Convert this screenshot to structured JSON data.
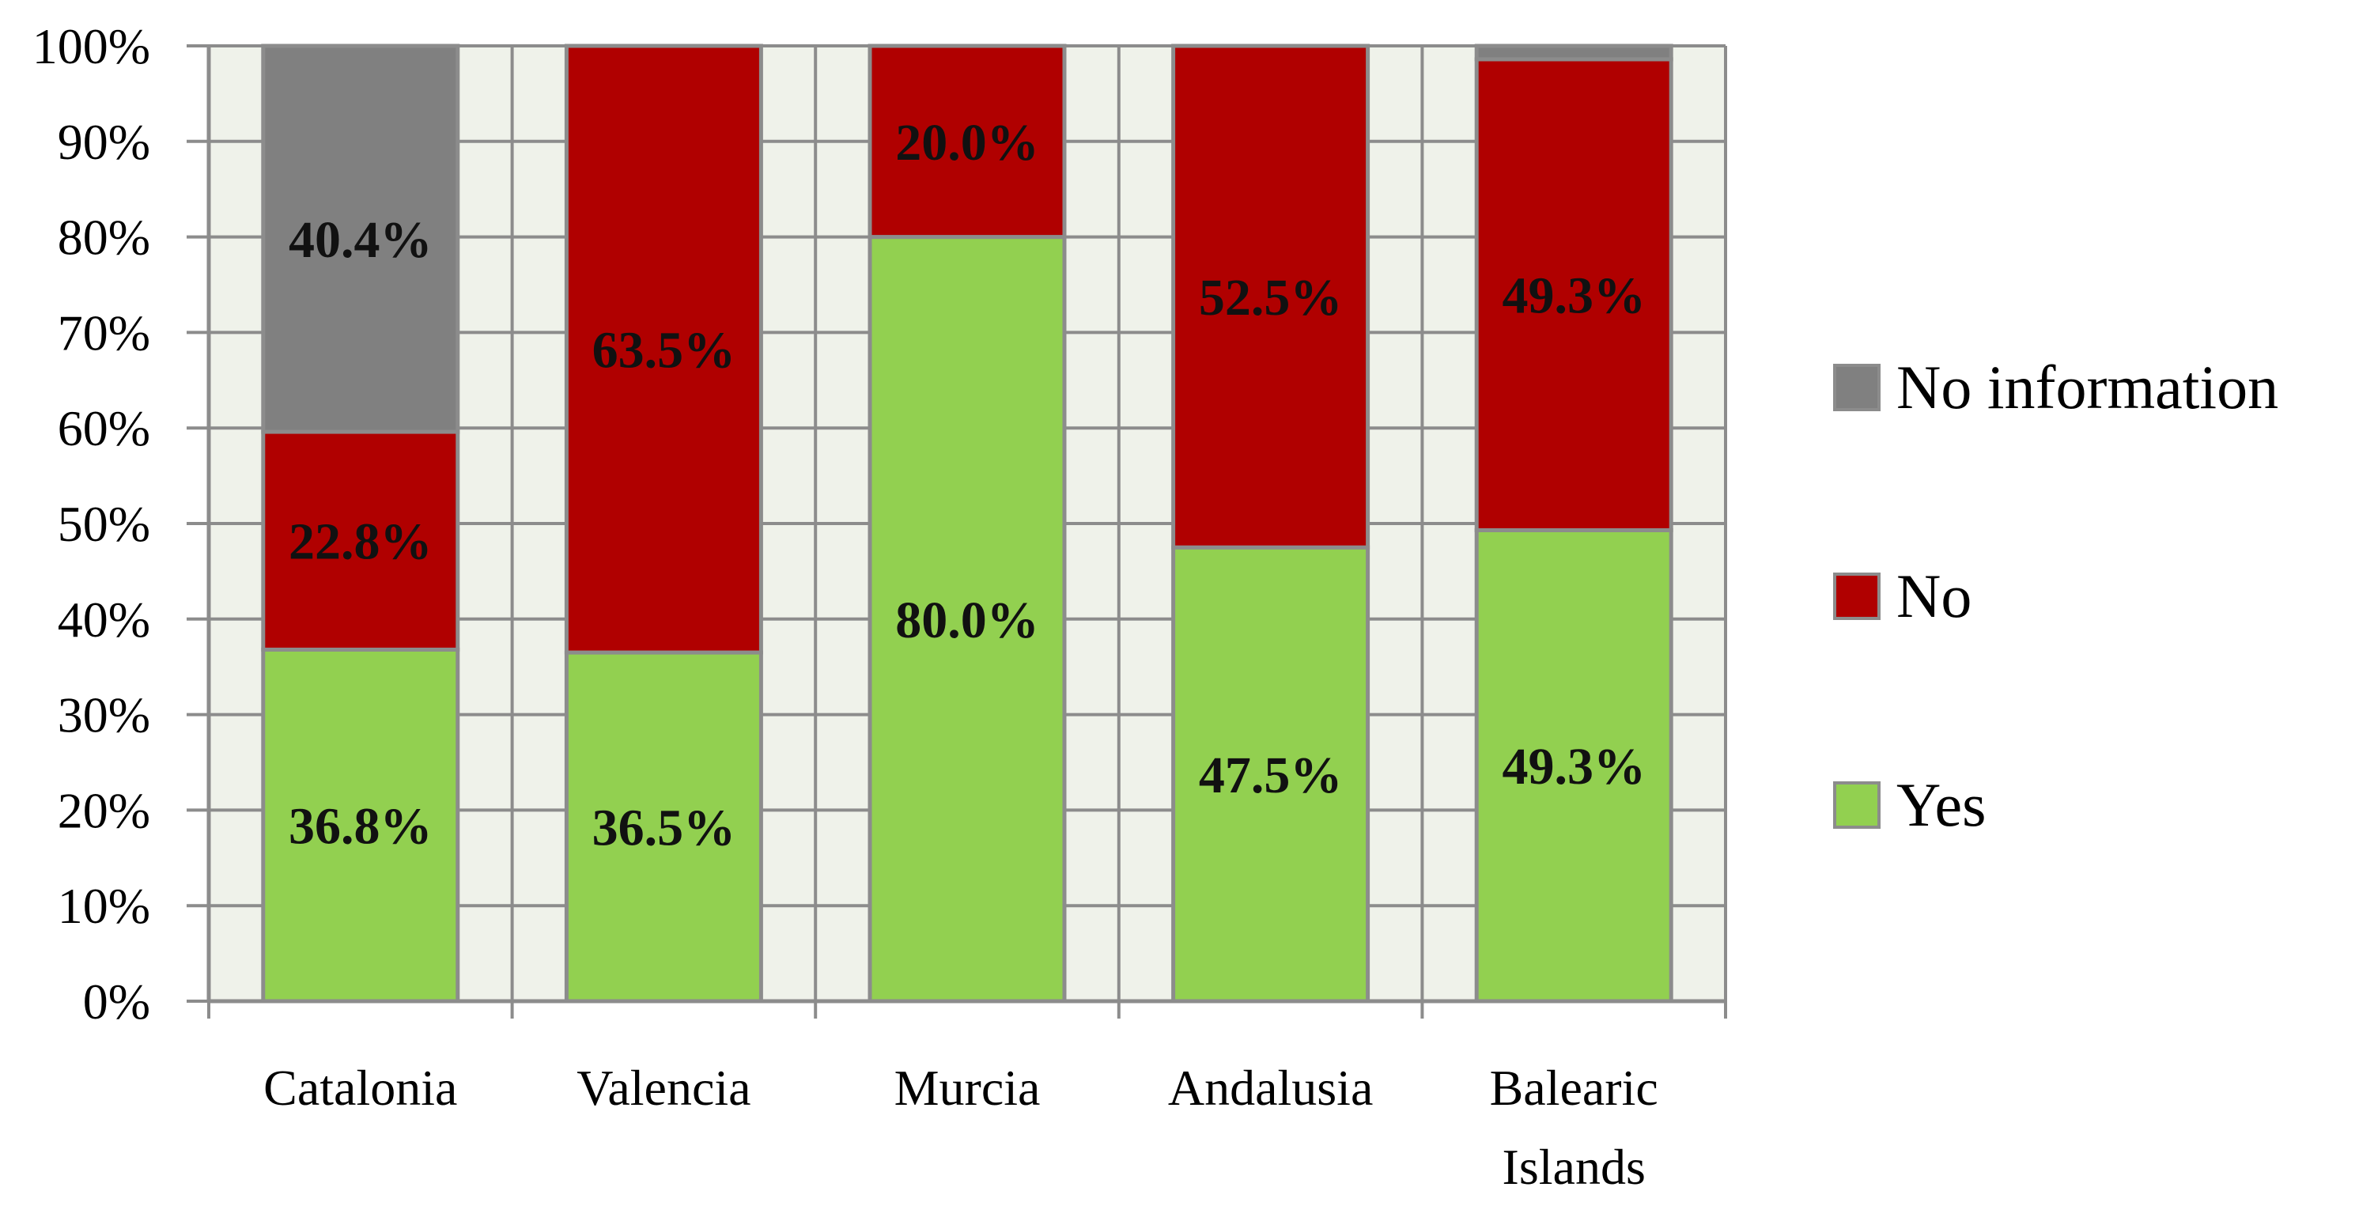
{
  "chart_data": {
    "type": "bar",
    "stacked": true,
    "percent_stacked": true,
    "categories": [
      "Catalonia",
      "Valencia",
      "Murcia",
      "Andalusia",
      "Balearic Islands"
    ],
    "series": [
      {
        "name": "Yes",
        "color": "#92d050",
        "values": [
          36.8,
          36.5,
          80.0,
          47.5,
          49.3
        ],
        "labels": [
          "36.8%",
          "36.5%",
          "80.0%",
          "47.5%",
          "49.3%"
        ]
      },
      {
        "name": "No",
        "color": "#b00000",
        "values": [
          22.8,
          63.5,
          20.0,
          52.5,
          49.3
        ],
        "labels": [
          "22.8%",
          "63.5%",
          "20.0%",
          "52.5%",
          "49.3%"
        ]
      },
      {
        "name": "No information",
        "color": "#808080",
        "values": [
          40.4,
          0,
          0,
          0,
          1.4
        ],
        "labels": [
          "40.4%",
          "",
          "",
          "",
          ""
        ]
      }
    ],
    "ylim": [
      0,
      100
    ],
    "yticks": [
      "0%",
      "10%",
      "20%",
      "30%",
      "40%",
      "50%",
      "60%",
      "70%",
      "80%",
      "90%",
      "100%"
    ],
    "legend_position": "right",
    "legend_order": [
      "No information",
      "No",
      "Yes"
    ],
    "grid": true,
    "plot_background": "#eff2ea",
    "gridline_color": "#8c8c8c",
    "bar_border_color": "#8c8c8c"
  }
}
